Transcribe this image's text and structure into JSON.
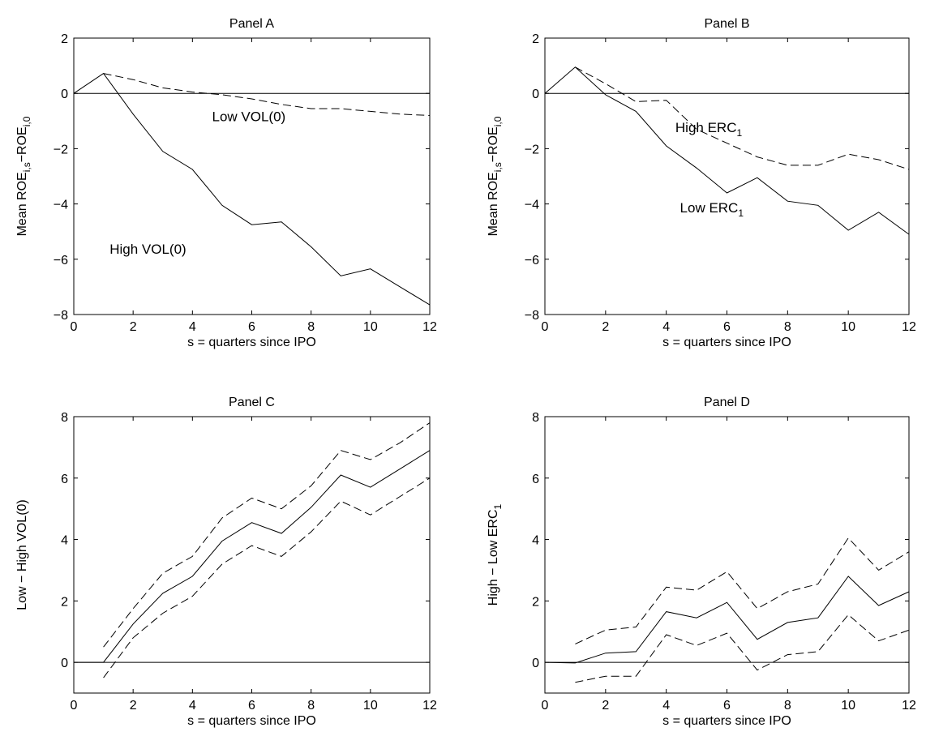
{
  "chart_data": [
    {
      "type": "line",
      "title": "Panel A",
      "xlabel": "s = quarters since IPO",
      "ylabel": {
        "main": "Mean ROE",
        "sub1": "i,s",
        "mid": "−ROE",
        "sub2": "i,0"
      },
      "xlim": [
        0,
        12
      ],
      "ylim": [
        -8,
        2
      ],
      "xticks": [
        0,
        2,
        4,
        6,
        8,
        10,
        12
      ],
      "yticks": [
        -8,
        -6,
        -4,
        -2,
        0,
        2
      ],
      "xtick_labels": [
        "0",
        "2",
        "4",
        "6",
        "8",
        "10",
        "12"
      ],
      "ytick_labels": [
        "−8",
        "−6",
        "−4",
        "−2",
        "0",
        "2"
      ],
      "zero_line": true,
      "grid": false,
      "series": [
        {
          "style": "solid",
          "x": [
            0,
            1,
            2,
            3,
            4,
            5,
            6,
            7,
            8,
            9,
            10,
            11,
            12
          ],
          "y": [
            0,
            0.72,
            -0.75,
            -2.1,
            -2.75,
            -4.05,
            -4.75,
            -4.65,
            -5.55,
            -6.6,
            -6.35,
            -7.0,
            -7.65
          ]
        },
        {
          "style": "dashed",
          "x": [
            1,
            2,
            3,
            4,
            5,
            6,
            7,
            8,
            9,
            10,
            11,
            12
          ],
          "y": [
            0.72,
            0.5,
            0.2,
            0.05,
            -0.05,
            -0.2,
            -0.4,
            -0.55,
            -0.55,
            -0.65,
            -0.75,
            -0.8
          ]
        }
      ],
      "annotations": [
        {
          "id": "low",
          "text": "Low VOL(0)",
          "x": 5.9,
          "y": -1.0
        },
        {
          "id": "high",
          "text": "High VOL(0)",
          "x": 2.5,
          "y": -5.8
        }
      ]
    },
    {
      "type": "line",
      "title": "Panel B",
      "xlabel": "s = quarters since IPO",
      "ylabel": {
        "main": "Mean ROE",
        "sub1": "i,s",
        "mid": "−ROE",
        "sub2": "i,0"
      },
      "xlim": [
        0,
        12
      ],
      "ylim": [
        -8,
        2
      ],
      "xticks": [
        0,
        2,
        4,
        6,
        8,
        10,
        12
      ],
      "yticks": [
        -8,
        -6,
        -4,
        -2,
        0,
        2
      ],
      "xtick_labels": [
        "0",
        "2",
        "4",
        "6",
        "8",
        "10",
        "12"
      ],
      "ytick_labels": [
        "−8",
        "−6",
        "−4",
        "−2",
        "0",
        "2"
      ],
      "zero_line": true,
      "grid": false,
      "series": [
        {
          "style": "solid",
          "x": [
            0,
            1,
            2,
            3,
            4,
            5,
            6,
            7,
            8,
            9,
            10,
            11,
            12
          ],
          "y": [
            0,
            0.95,
            -0.05,
            -0.65,
            -1.9,
            -2.7,
            -3.6,
            -3.05,
            -3.9,
            -4.05,
            -4.95,
            -4.3,
            -5.1
          ]
        },
        {
          "style": "dashed",
          "x": [
            1,
            2,
            3,
            4,
            5,
            6,
            7,
            8,
            9,
            10,
            11,
            12
          ],
          "y": [
            0.95,
            0.35,
            -0.3,
            -0.25,
            -1.3,
            -1.8,
            -2.3,
            -2.6,
            -2.6,
            -2.2,
            -2.4,
            -2.75
          ]
        }
      ],
      "annotations": [
        {
          "id": "high",
          "text": "High ERC",
          "sub": "1",
          "x": 5.4,
          "y": -1.4
        },
        {
          "id": "low",
          "text": "Low ERC",
          "sub": "1",
          "x": 5.5,
          "y": -4.3
        }
      ]
    },
    {
      "type": "line",
      "title": "Panel C",
      "xlabel": "s = quarters since IPO",
      "ylabel": {
        "main": "Low − High VOL(0)"
      },
      "xlim": [
        0,
        12
      ],
      "ylim": [
        -1,
        8
      ],
      "xticks": [
        0,
        2,
        4,
        6,
        8,
        10,
        12
      ],
      "yticks": [
        0,
        2,
        4,
        6,
        8
      ],
      "xtick_labels": [
        "0",
        "2",
        "4",
        "6",
        "8",
        "10",
        "12"
      ],
      "ytick_labels": [
        "0",
        "2",
        "4",
        "6",
        "8"
      ],
      "zero_line": true,
      "grid": false,
      "series": [
        {
          "style": "solid",
          "x": [
            0,
            1,
            2,
            3,
            4,
            5,
            6,
            7,
            8,
            9,
            10,
            11,
            12
          ],
          "y": [
            0,
            0,
            1.25,
            2.25,
            2.8,
            3.95,
            4.55,
            4.2,
            5.05,
            6.1,
            5.7,
            6.3,
            6.9
          ]
        },
        {
          "style": "dashed",
          "x": [
            1,
            2,
            3,
            4,
            5,
            6,
            7,
            8,
            9,
            10,
            11,
            12
          ],
          "y": [
            0.5,
            1.75,
            2.9,
            3.45,
            4.7,
            5.35,
            5.0,
            5.75,
            6.9,
            6.6,
            7.15,
            7.8
          ]
        },
        {
          "style": "dashed",
          "x": [
            1,
            2,
            3,
            4,
            5,
            6,
            7,
            8,
            9,
            10,
            11,
            12
          ],
          "y": [
            -0.5,
            0.8,
            1.6,
            2.15,
            3.2,
            3.8,
            3.45,
            4.25,
            5.25,
            4.8,
            5.4,
            6.0
          ]
        }
      ],
      "annotations": []
    },
    {
      "type": "line",
      "title": "Panel D",
      "xlabel": "s = quarters since IPO",
      "ylabel": {
        "main": "High − Low ERC",
        "sub1": "1"
      },
      "xlim": [
        0,
        12
      ],
      "ylim": [
        -1,
        8
      ],
      "xticks": [
        0,
        2,
        4,
        6,
        8,
        10,
        12
      ],
      "yticks": [
        0,
        2,
        4,
        6,
        8
      ],
      "xtick_labels": [
        "0",
        "2",
        "4",
        "6",
        "8",
        "10",
        "12"
      ],
      "ytick_labels": [
        "0",
        "2",
        "4",
        "6",
        "8"
      ],
      "zero_line": true,
      "grid": false,
      "series": [
        {
          "style": "solid",
          "x": [
            0,
            1,
            2,
            3,
            4,
            5,
            6,
            7,
            8,
            9,
            10,
            11,
            12
          ],
          "y": [
            0,
            -0.02,
            0.3,
            0.35,
            1.65,
            1.45,
            1.95,
            0.75,
            1.3,
            1.45,
            2.8,
            1.85,
            2.3
          ]
        },
        {
          "style": "dashed",
          "x": [
            1,
            2,
            3,
            4,
            5,
            6,
            7,
            8,
            9,
            10,
            11,
            12
          ],
          "y": [
            0.6,
            1.05,
            1.15,
            2.45,
            2.35,
            2.95,
            1.75,
            2.3,
            2.55,
            4.05,
            3.0,
            3.6
          ]
        },
        {
          "style": "dashed",
          "x": [
            1,
            2,
            3,
            4,
            5,
            6,
            7,
            8,
            9,
            10,
            11,
            12
          ],
          "y": [
            -0.65,
            -0.45,
            -0.45,
            0.9,
            0.55,
            0.95,
            -0.25,
            0.25,
            0.35,
            1.55,
            0.7,
            1.05
          ]
        }
      ],
      "annotations": []
    }
  ]
}
